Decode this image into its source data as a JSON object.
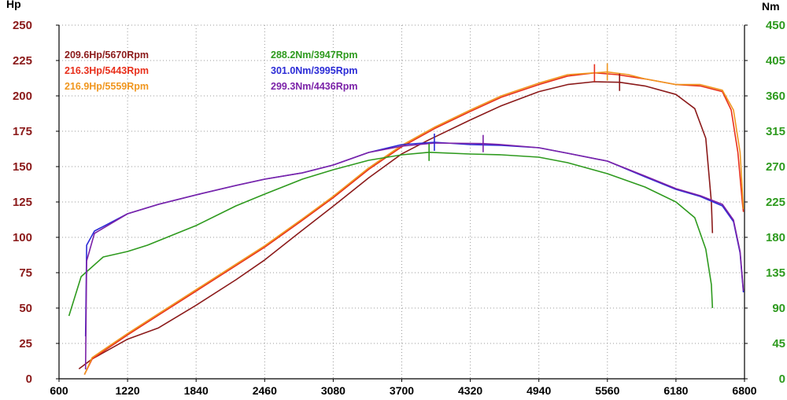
{
  "chart_data": {
    "type": "line",
    "left_axis": {
      "unit": "Hp",
      "ticks": [
        "0",
        "25",
        "50",
        "75",
        "100",
        "125",
        "150",
        "175",
        "200",
        "225",
        "250"
      ],
      "range": [
        0,
        250
      ],
      "color": "#8b1a1a"
    },
    "right_axis": {
      "unit": "Nm",
      "ticks": [
        "0",
        "45",
        "90",
        "135",
        "180",
        "225",
        "270",
        "315",
        "360",
        "405",
        "450"
      ],
      "range": [
        0,
        450
      ],
      "color": "#2e9a1e"
    },
    "x_axis": {
      "ticks": [
        "600",
        "1220",
        "1840",
        "2460",
        "3080",
        "3700",
        "4320",
        "4940",
        "5560",
        "6180",
        "6800"
      ],
      "range": [
        600,
        6800
      ]
    },
    "grid": true,
    "legend": [
      {
        "text": "209.6Hp/5670Rpm",
        "color": "#8b1a1a"
      },
      {
        "text": "216.3Hp/5443Rpm",
        "color": "#e8301c"
      },
      {
        "text": "216.9Hp/5559Rpm",
        "color": "#f0961e"
      },
      {
        "text": "288.2Nm/3947Rpm",
        "color": "#2e9a1e"
      },
      {
        "text": "301.0Nm/3995Rpm",
        "color": "#2b2bd6"
      },
      {
        "text": "299.3Nm/4436Rpm",
        "color": "#7b22a8"
      }
    ],
    "series": [
      {
        "axis": "left",
        "color": "#8b1a1a",
        "points": [
          [
            780,
            7
          ],
          [
            900,
            14
          ],
          [
            1220,
            28
          ],
          [
            1500,
            36
          ],
          [
            1840,
            52
          ],
          [
            2200,
            70
          ],
          [
            2460,
            84
          ],
          [
            2800,
            105
          ],
          [
            3080,
            122
          ],
          [
            3400,
            142
          ],
          [
            3700,
            159
          ],
          [
            3947,
            169
          ],
          [
            4320,
            183
          ],
          [
            4600,
            193
          ],
          [
            4940,
            203
          ],
          [
            5200,
            208
          ],
          [
            5440,
            210
          ],
          [
            5670,
            209.6
          ],
          [
            5900,
            207
          ],
          [
            6180,
            201
          ],
          [
            6350,
            191
          ],
          [
            6450,
            170
          ],
          [
            6500,
            125
          ],
          [
            6510,
            103
          ]
        ]
      },
      {
        "axis": "left",
        "color": "#e8301c",
        "points": [
          [
            830,
            3
          ],
          [
            900,
            14
          ],
          [
            1220,
            31
          ],
          [
            1500,
            45
          ],
          [
            1840,
            62
          ],
          [
            2200,
            80
          ],
          [
            2460,
            93
          ],
          [
            2800,
            112
          ],
          [
            3080,
            128
          ],
          [
            3400,
            148
          ],
          [
            3700,
            164
          ],
          [
            4000,
            177
          ],
          [
            4320,
            189
          ],
          [
            4600,
            199
          ],
          [
            4940,
            208
          ],
          [
            5200,
            214
          ],
          [
            5443,
            216.3
          ],
          [
            5650,
            215
          ],
          [
            5900,
            212
          ],
          [
            6180,
            208
          ],
          [
            6400,
            207
          ],
          [
            6600,
            203
          ],
          [
            6680,
            190
          ],
          [
            6740,
            160
          ],
          [
            6780,
            125
          ],
          [
            6790,
            118
          ]
        ]
      },
      {
        "axis": "left",
        "color": "#f0961e",
        "points": [
          [
            830,
            3
          ],
          [
            900,
            15
          ],
          [
            1220,
            32
          ],
          [
            1500,
            46
          ],
          [
            1840,
            63
          ],
          [
            2200,
            81
          ],
          [
            2460,
            94
          ],
          [
            2800,
            113
          ],
          [
            3080,
            129
          ],
          [
            3400,
            149
          ],
          [
            3700,
            165
          ],
          [
            4000,
            178
          ],
          [
            4320,
            190
          ],
          [
            4600,
            200
          ],
          [
            4940,
            209
          ],
          [
            5200,
            215
          ],
          [
            5559,
            216.9
          ],
          [
            5750,
            215
          ],
          [
            5900,
            212
          ],
          [
            6180,
            208
          ],
          [
            6400,
            208
          ],
          [
            6600,
            204
          ],
          [
            6700,
            190
          ],
          [
            6760,
            160
          ],
          [
            6790,
            120
          ]
        ]
      },
      {
        "axis": "right",
        "color": "#2e9a1e",
        "points": [
          [
            690,
            80
          ],
          [
            800,
            130
          ],
          [
            1000,
            155
          ],
          [
            1220,
            162
          ],
          [
            1400,
            170
          ],
          [
            1840,
            195
          ],
          [
            2200,
            220
          ],
          [
            2460,
            235
          ],
          [
            2800,
            254
          ],
          [
            3080,
            266
          ],
          [
            3400,
            278
          ],
          [
            3700,
            285
          ],
          [
            3947,
            288.2
          ],
          [
            4320,
            286
          ],
          [
            4600,
            285
          ],
          [
            4940,
            282
          ],
          [
            5200,
            275
          ],
          [
            5560,
            261
          ],
          [
            5900,
            244
          ],
          [
            6180,
            225
          ],
          [
            6350,
            205
          ],
          [
            6450,
            165
          ],
          [
            6500,
            120
          ],
          [
            6510,
            90
          ]
        ]
      },
      {
        "axis": "right",
        "color": "#2b2bd6",
        "points": [
          [
            840,
            54
          ],
          [
            850,
            170
          ],
          [
            920,
            188
          ],
          [
            1220,
            210
          ],
          [
            1500,
            222
          ],
          [
            1840,
            234
          ],
          [
            2200,
            246
          ],
          [
            2460,
            254
          ],
          [
            2800,
            262
          ],
          [
            3080,
            272
          ],
          [
            3400,
            288
          ],
          [
            3700,
            298
          ],
          [
            3995,
            301.0
          ],
          [
            4320,
            298
          ],
          [
            4600,
            297
          ],
          [
            4940,
            294
          ],
          [
            5200,
            287
          ],
          [
            5560,
            277
          ],
          [
            5900,
            257
          ],
          [
            6180,
            241
          ],
          [
            6400,
            232
          ],
          [
            6600,
            220
          ],
          [
            6700,
            200
          ],
          [
            6760,
            160
          ],
          [
            6790,
            110
          ]
        ]
      },
      {
        "axis": "right",
        "color": "#7b22a8",
        "points": [
          [
            840,
            12
          ],
          [
            850,
            150
          ],
          [
            920,
            185
          ],
          [
            1220,
            210
          ],
          [
            1500,
            222
          ],
          [
            1840,
            234
          ],
          [
            2200,
            246
          ],
          [
            2460,
            254
          ],
          [
            2800,
            262
          ],
          [
            3080,
            272
          ],
          [
            3400,
            288
          ],
          [
            3700,
            296
          ],
          [
            4000,
            300
          ],
          [
            4436,
            299.3
          ],
          [
            4600,
            298
          ],
          [
            4940,
            294
          ],
          [
            5200,
            287
          ],
          [
            5560,
            277
          ],
          [
            5900,
            258
          ],
          [
            6180,
            242
          ],
          [
            6400,
            233
          ],
          [
            6600,
            222
          ],
          [
            6700,
            202
          ],
          [
            6760,
            162
          ],
          [
            6790,
            112
          ]
        ]
      }
    ],
    "markers": [
      {
        "x": 5670,
        "value": 209.6,
        "axis": "left",
        "color": "#8b1a1a"
      },
      {
        "x": 5443,
        "value": 216.3,
        "axis": "left",
        "color": "#e8301c"
      },
      {
        "x": 5559,
        "value": 216.9,
        "axis": "left",
        "color": "#f0961e"
      },
      {
        "x": 3947,
        "value": 288.2,
        "axis": "right",
        "color": "#2e9a1e"
      },
      {
        "x": 3995,
        "value": 301.0,
        "axis": "right",
        "color": "#2b2bd6"
      },
      {
        "x": 4436,
        "value": 299.3,
        "axis": "right",
        "color": "#7b22a8"
      }
    ]
  }
}
